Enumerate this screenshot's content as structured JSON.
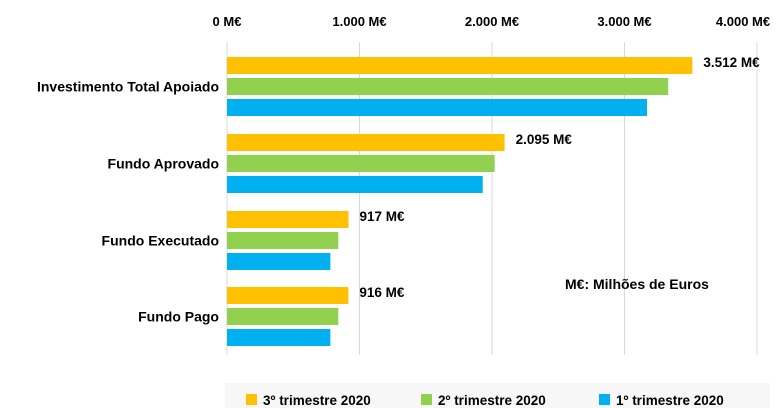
{
  "chart_data": {
    "type": "bar",
    "orientation": "horizontal",
    "categories": [
      "Investimento Total Apoiado",
      "Fundo Aprovado",
      "Fundo Executado",
      "Fundo Pago"
    ],
    "series": [
      {
        "name": "3º trimestre 2020",
        "color": "#ffc000",
        "values": [
          3512,
          2095,
          917,
          916
        ]
      },
      {
        "name": "2º trimestre 2020",
        "color": "#92d050",
        "values": [
          3330,
          2020,
          840,
          840
        ]
      },
      {
        "name": "1º trimestre 2020",
        "color": "#00b0f0",
        "values": [
          3170,
          1930,
          780,
          780
        ]
      }
    ],
    "data_labels": [
      "3.512 M€",
      "2.095 M€",
      "917 M€",
      "916 M€"
    ],
    "x_ticks": [
      "0 M€",
      "1.000 M€",
      "2.000 M€",
      "3.000 M€",
      "4.000 M€"
    ],
    "xlim": [
      0,
      4000
    ],
    "x_axis_position": "top",
    "grid": true,
    "legend_position": "bottom",
    "annotation": "M€: Milhões de Euros"
  }
}
